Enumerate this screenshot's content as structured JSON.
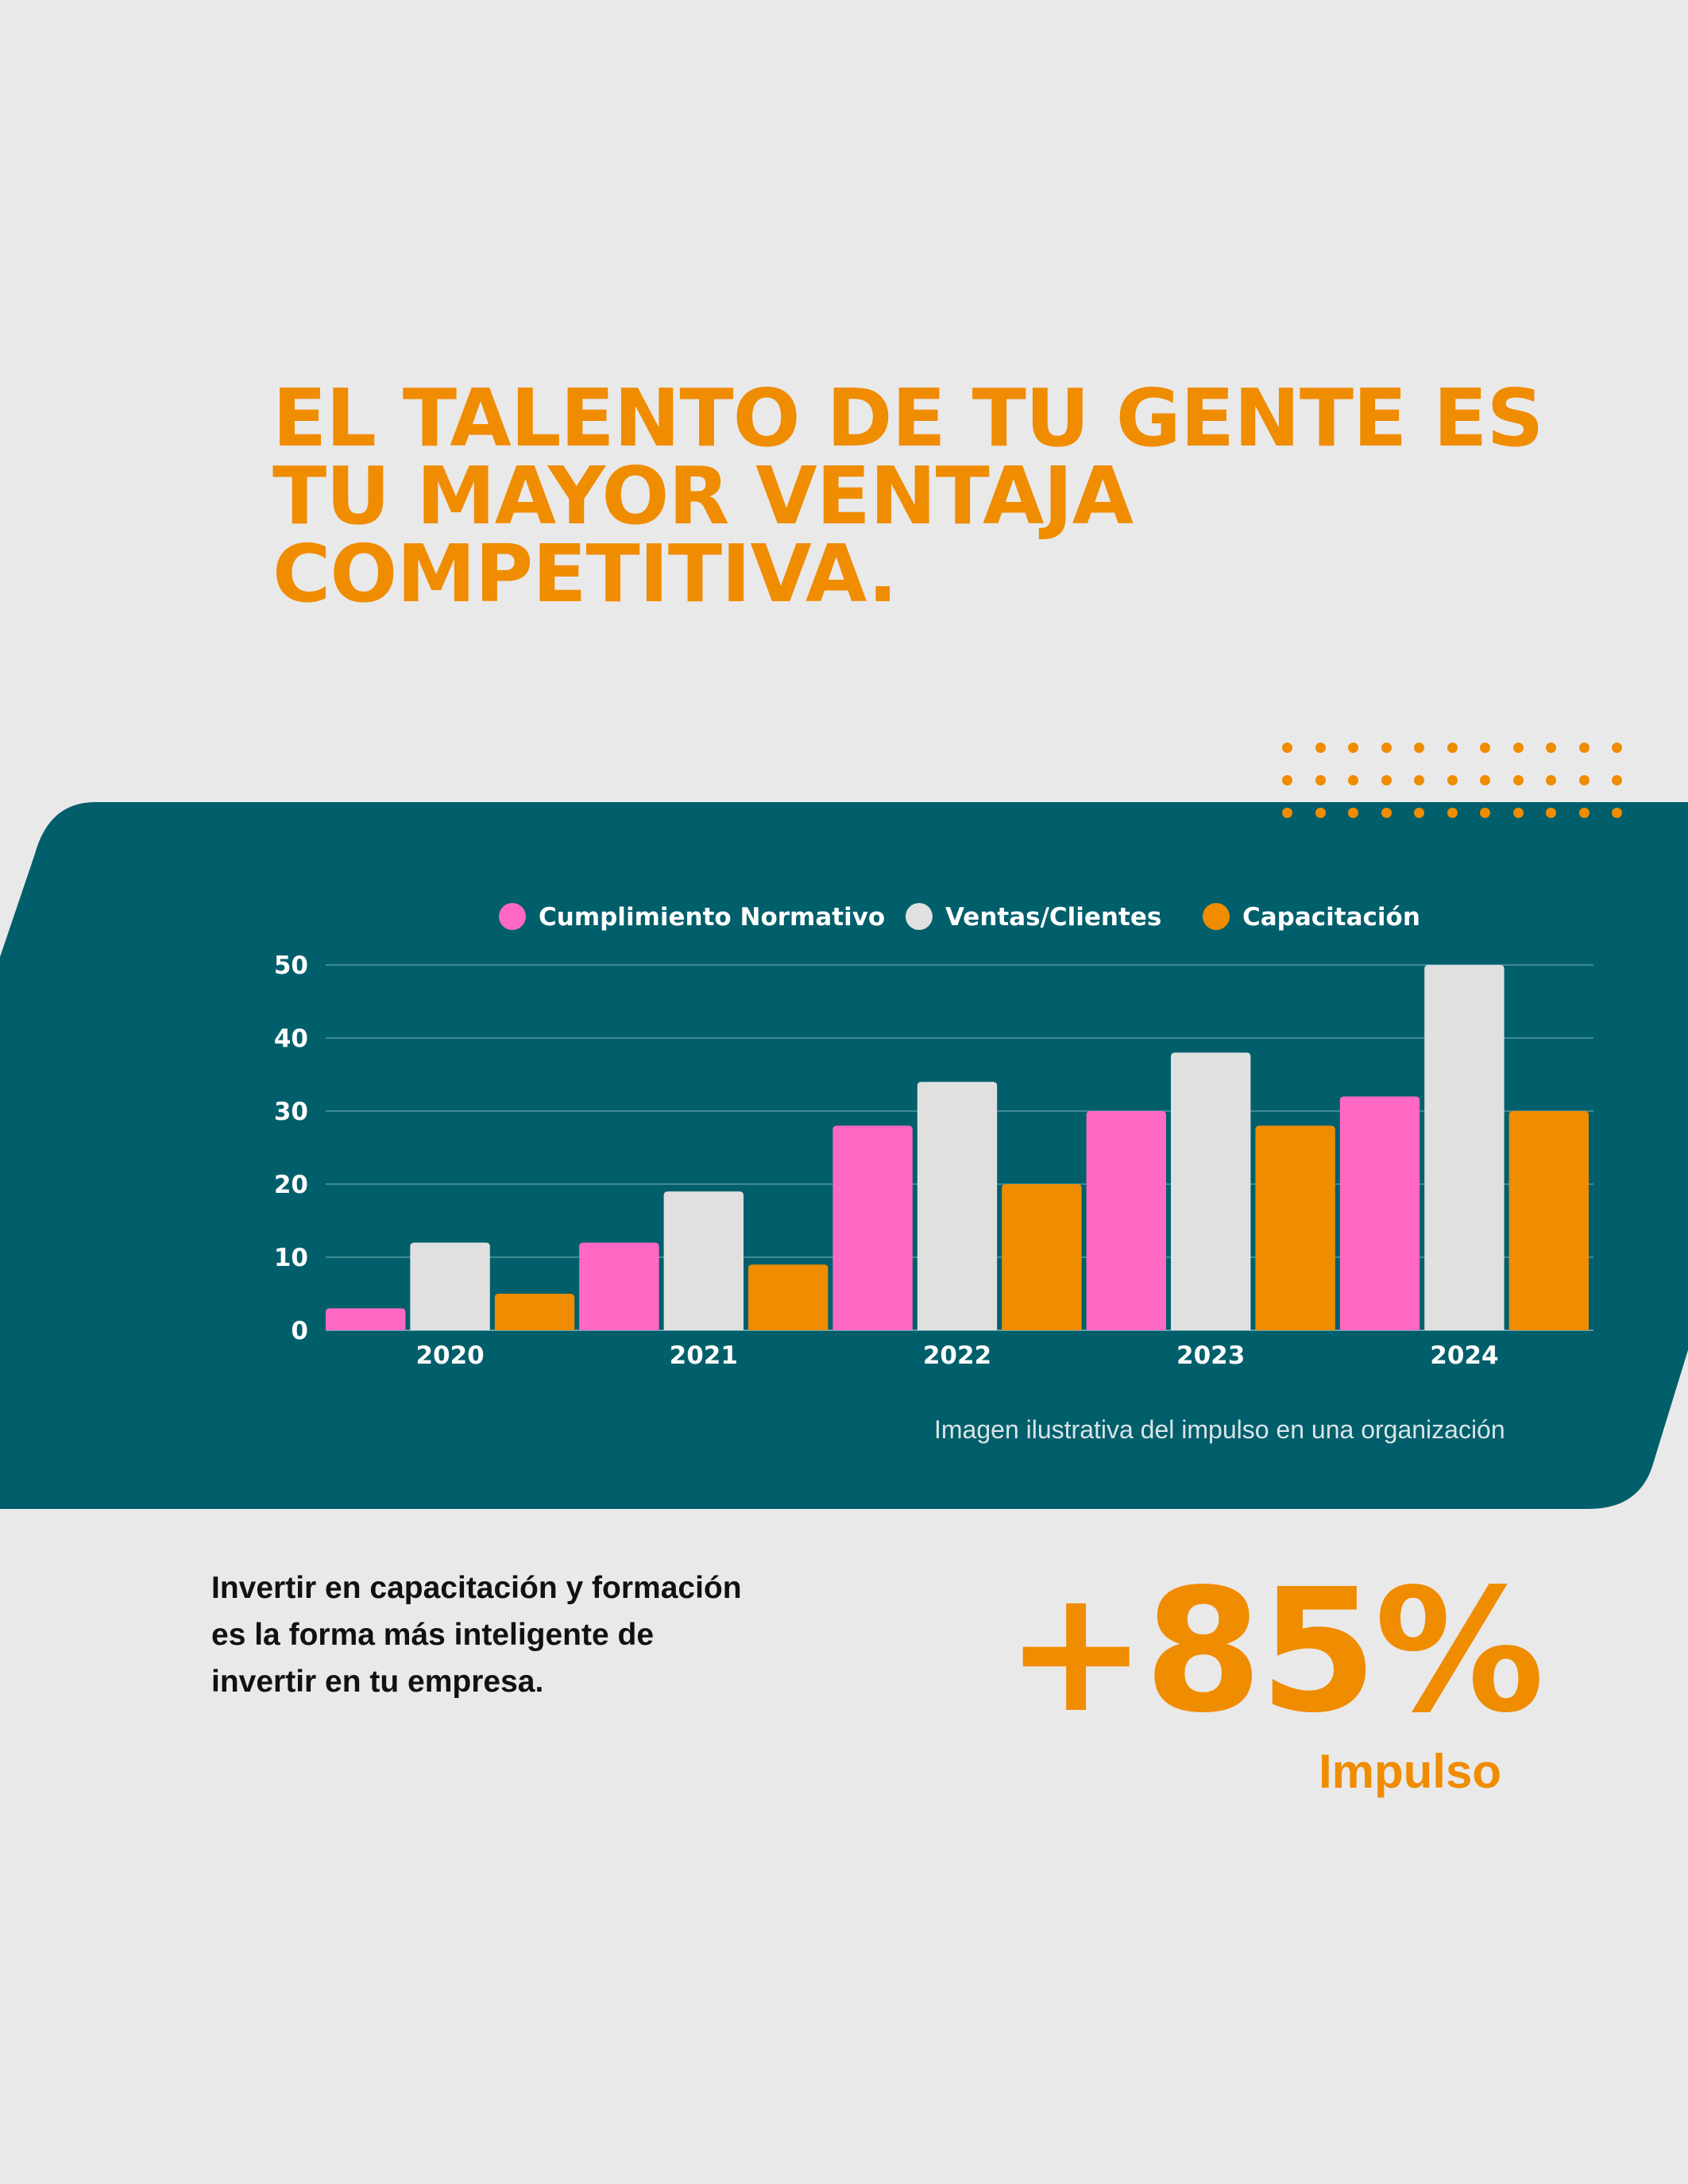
{
  "headline": {
    "lines": [
      "EL TALENTO DE TU GENTE ES",
      "TU MAYOR VENTAJA",
      "COMPETITIVA."
    ]
  },
  "caption": "Imagen ilustrativa del impulso en una organización",
  "body_text": {
    "lines": [
      "Invertir en capacitación y formación",
      "es la forma más inteligente de",
      "invertir en tu empresa."
    ]
  },
  "stat": {
    "value": "+85%",
    "label": "Impulso"
  },
  "colors": {
    "background": "#e9e9e9",
    "band": "#005f6b",
    "accent": "#f08c00",
    "pink": "#ff69c4",
    "light": "#e0e0e0"
  },
  "chart_data": {
    "type": "bar",
    "categories": [
      "2020",
      "2021",
      "2022",
      "2023",
      "2024"
    ],
    "series": [
      {
        "name": "Cumplimiento Normativo",
        "color": "#ff69c4",
        "values": [
          3,
          12,
          28,
          30,
          32
        ]
      },
      {
        "name": "Ventas/Clientes",
        "color": "#e0e0e0",
        "values": [
          12,
          19,
          34,
          38,
          50
        ]
      },
      {
        "name": "Capacitación",
        "color": "#f08c00",
        "values": [
          5,
          9,
          20,
          28,
          30
        ]
      }
    ],
    "yticks": [
      0,
      10,
      20,
      30,
      40,
      50
    ],
    "ylim": [
      0,
      50
    ],
    "grid": true,
    "legend": "top-center",
    "title": "",
    "xlabel": "",
    "ylabel": ""
  }
}
